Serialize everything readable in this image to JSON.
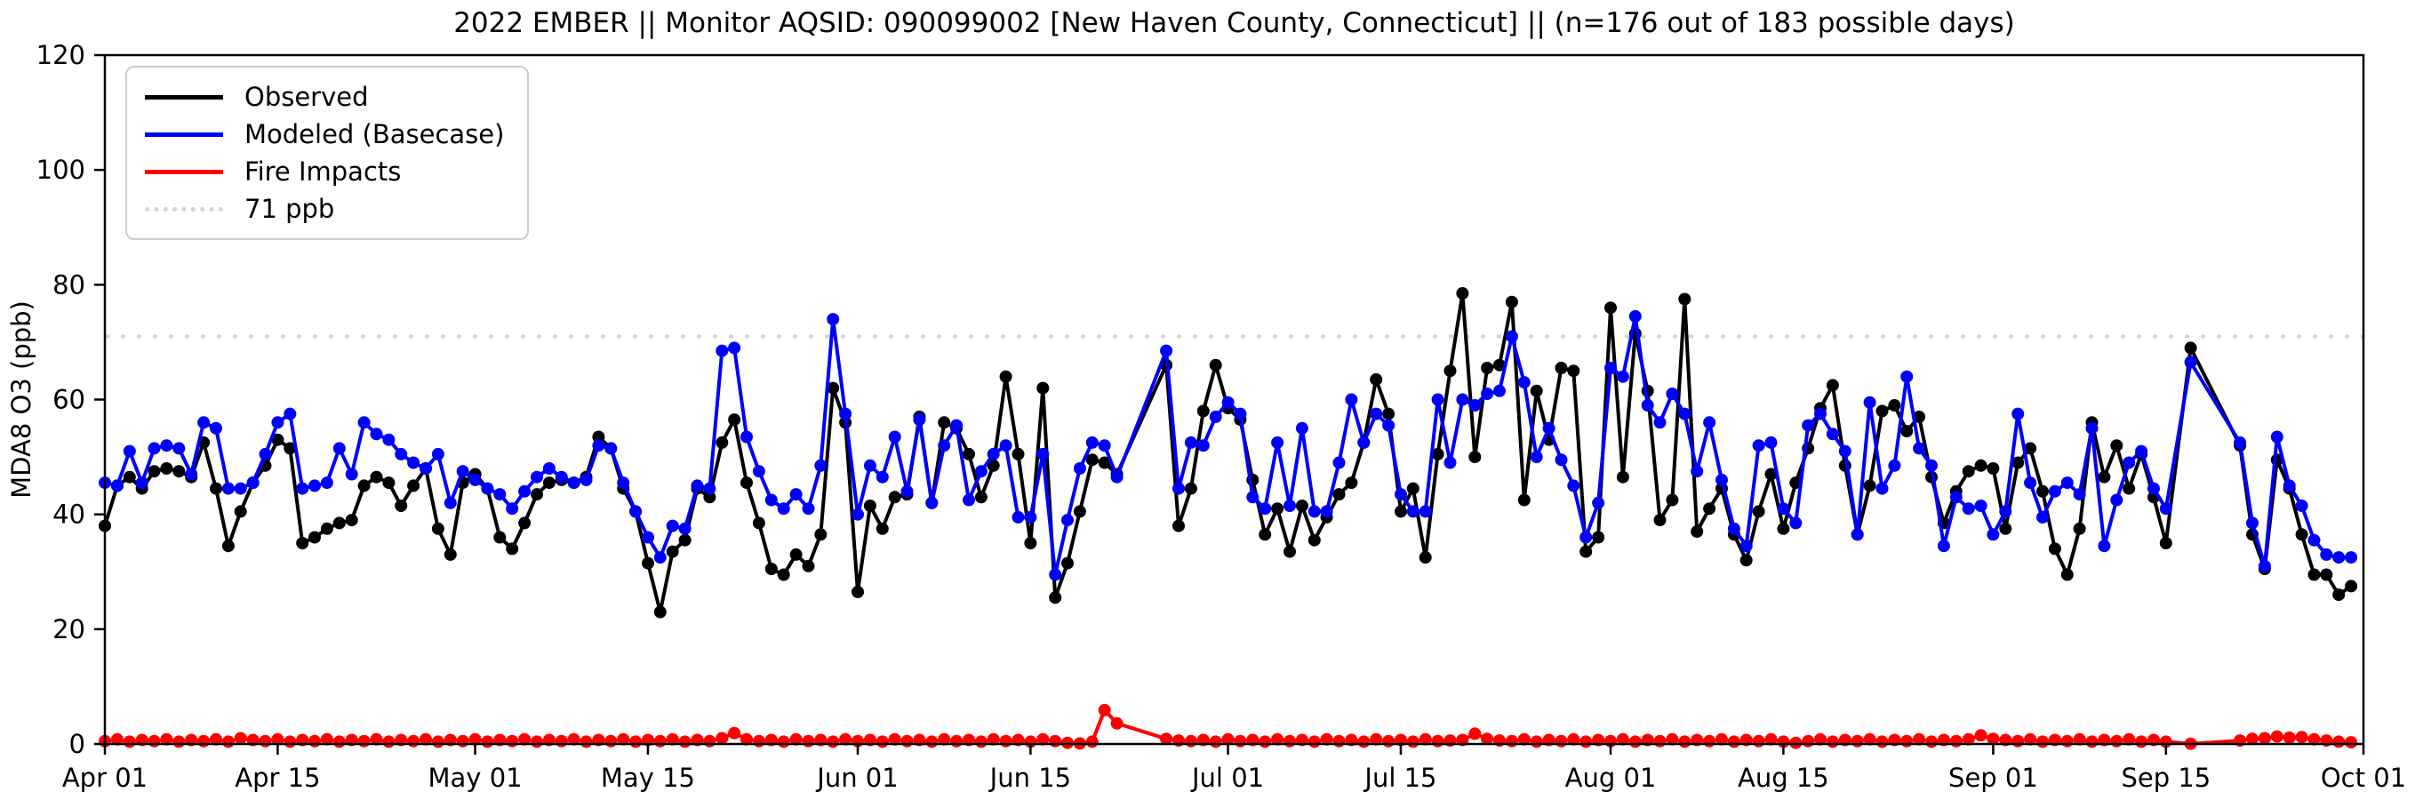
{
  "title": "2022 EMBER || Monitor AQSID: 090099002 [New Haven County, Connecticut] || (n=176 out of 183 possible days)",
  "legend": {
    "items": [
      {
        "label": "Observed",
        "color": "#000000",
        "dash": "solid"
      },
      {
        "label": "Modeled (Basecase)",
        "color": "#0000ff",
        "dash": "solid"
      },
      {
        "label": "Fire Impacts",
        "color": "#ff0000",
        "dash": "solid"
      },
      {
        "label": "71 ppb",
        "color": "#d3d3d3",
        "dash": "dotted"
      }
    ]
  },
  "axes": {
    "ylabel": "MDA8 O3 (ppb)",
    "ylim": [
      0,
      120
    ],
    "yticks": [
      0,
      20,
      40,
      60,
      80,
      100,
      120
    ],
    "xticks": [
      {
        "label": "Apr 01",
        "day": 0
      },
      {
        "label": "Apr 15",
        "day": 14
      },
      {
        "label": "May 01",
        "day": 30
      },
      {
        "label": "May 15",
        "day": 44
      },
      {
        "label": "Jun 01",
        "day": 61
      },
      {
        "label": "Jun 15",
        "day": 75
      },
      {
        "label": "Jul 01",
        "day": 91
      },
      {
        "label": "Jul 15",
        "day": 105
      },
      {
        "label": "Aug 01",
        "day": 122
      },
      {
        "label": "Aug 15",
        "day": 136
      },
      {
        "label": "Sep 01",
        "day": 153
      },
      {
        "label": "Sep 15",
        "day": 167
      },
      {
        "label": "Oct 01",
        "day": 183
      }
    ]
  },
  "chart_data": {
    "type": "line",
    "title": "2022 EMBER || Monitor AQSID: 090099002 [New Haven County, Connecticut] || (n=176 out of 183 possible days)",
    "xlabel": "",
    "ylabel": "MDA8 O3 (ppb)",
    "ylim": [
      0,
      120
    ],
    "x_unit": "daily, Apr 01 2022 through Sep 30 2022 (index 0 = Apr 01; null = missing day)",
    "n_days": 183,
    "n_valid_days": 176,
    "threshold": {
      "value": 71,
      "label": "71 ppb",
      "color": "#d3d3d3"
    },
    "grid": false,
    "legend_position": "upper left",
    "series": [
      {
        "name": "Observed",
        "color": "#000000",
        "marker": "circle",
        "values": [
          38,
          45,
          46.5,
          44.5,
          47.5,
          48,
          47.5,
          46.5,
          52.5,
          44.5,
          34.5,
          40.5,
          45.5,
          48.5,
          53,
          51.5,
          35,
          36,
          37.5,
          38.5,
          39,
          45,
          46.5,
          45.5,
          41.5,
          45,
          48,
          37.5,
          33,
          45.5,
          47,
          44.5,
          36,
          34,
          38.5,
          43.5,
          45.5,
          46,
          45.5,
          46.5,
          53.5,
          51.5,
          44.5,
          40.5,
          31.5,
          23,
          33.5,
          35.5,
          44.5,
          43,
          52.5,
          56.5,
          45.5,
          38.5,
          30.5,
          29.5,
          33,
          31,
          36.5,
          62,
          56,
          26.5,
          41.5,
          37.5,
          43,
          43.5,
          57,
          42,
          56,
          55,
          50.5,
          43,
          48.5,
          64,
          50.5,
          35,
          62,
          25.5,
          31.5,
          40.5,
          49.5,
          49,
          47,
          null,
          null,
          null,
          66,
          38,
          44.5,
          58,
          66,
          58.5,
          56.5,
          46,
          36.5,
          41,
          33.5,
          41.5,
          35.5,
          39.5,
          43.5,
          45.5,
          52.5,
          63.5,
          57.5,
          40.5,
          44.5,
          32.5,
          50.5,
          65,
          78.5,
          50,
          65.5,
          66,
          77,
          42.5,
          61.5,
          53,
          65.5,
          65,
          33.5,
          36,
          76,
          46.5,
          71.5,
          61.5,
          39,
          42.5,
          77.5,
          37,
          41,
          44.5,
          36.5,
          32,
          40.5,
          47,
          37.5,
          45.5,
          51.5,
          58.5,
          62.5,
          48.5,
          36.5,
          45,
          58,
          59,
          54.5,
          57,
          46.5,
          38.5,
          44,
          47.5,
          48.5,
          48,
          37.5,
          49,
          51.5,
          44,
          34,
          29.5,
          37.5,
          56,
          46.5,
          52,
          44.5,
          50.5,
          43,
          35,
          null,
          69,
          null,
          null,
          null,
          52,
          36.5,
          30.5,
          49.5,
          44.5,
          36.5,
          29.5,
          29.5,
          26,
          27.5
        ]
      },
      {
        "name": "Modeled (Basecase)",
        "color": "#0000ff",
        "marker": "circle",
        "values": [
          45.5,
          45,
          51,
          45.5,
          51.5,
          52,
          51.5,
          47,
          56,
          55,
          44.5,
          44.5,
          45.5,
          50.5,
          56,
          57.5,
          44.5,
          45,
          45.5,
          51.5,
          47,
          56,
          54,
          53,
          50.5,
          49,
          48,
          50.5,
          42,
          47.5,
          46,
          44.5,
          43.5,
          41,
          44,
          46.5,
          48,
          46.5,
          45.5,
          46,
          52,
          51.5,
          45.5,
          40.5,
          36,
          32.5,
          38,
          37.5,
          45,
          44.5,
          68.5,
          69,
          53.5,
          47.5,
          42.5,
          41,
          43.5,
          41,
          48.5,
          74,
          57.5,
          40,
          48.5,
          46.5,
          53.5,
          44,
          56.5,
          42,
          52,
          55.5,
          42.5,
          47.5,
          50.5,
          52,
          39.5,
          39.5,
          50.5,
          29.5,
          39,
          48,
          52.5,
          52,
          46.5,
          null,
          null,
          null,
          68.5,
          44.5,
          52.5,
          52,
          57,
          59.5,
          57.5,
          43,
          41,
          52.5,
          41.5,
          55,
          40.5,
          40.5,
          49,
          60,
          52.5,
          57.5,
          55.5,
          43.5,
          40.5,
          40.5,
          60,
          49,
          60,
          59,
          61,
          61.5,
          71,
          63,
          50,
          55,
          49.5,
          45,
          36,
          42,
          65.5,
          64,
          74.5,
          59,
          56,
          61,
          57.5,
          47.5,
          56,
          46,
          37.5,
          34.5,
          52,
          52.5,
          41,
          38.5,
          55.5,
          57.5,
          54,
          51,
          36.5,
          59.5,
          44.5,
          48.5,
          64,
          51.5,
          48.5,
          34.5,
          43,
          41,
          41.5,
          36.5,
          40.5,
          57.5,
          45.5,
          39.5,
          44,
          45.5,
          43.5,
          55,
          34.5,
          42.5,
          49,
          51,
          44.5,
          41,
          null,
          66.5,
          null,
          null,
          null,
          52.5,
          38.5,
          31,
          53.5,
          45,
          41.5,
          35.5,
          33,
          32.5,
          32.5
        ]
      },
      {
        "name": "Fire Impacts",
        "color": "#ff0000",
        "marker": "circle",
        "values": [
          0.5,
          0.8,
          0.4,
          0.7,
          0.5,
          0.8,
          0.4,
          0.7,
          0.5,
          0.8,
          0.4,
          1.0,
          0.7,
          0.5,
          0.8,
          0.4,
          0.7,
          0.5,
          0.8,
          0.4,
          0.7,
          0.5,
          0.8,
          0.4,
          0.7,
          0.5,
          0.8,
          0.4,
          0.7,
          0.5,
          0.8,
          0.4,
          0.7,
          0.5,
          0.8,
          0.4,
          0.7,
          0.5,
          0.8,
          0.4,
          0.7,
          0.5,
          0.8,
          0.4,
          0.7,
          0.5,
          0.8,
          0.4,
          0.7,
          0.5,
          1.0,
          1.9,
          0.8,
          0.5,
          0.7,
          0.4,
          0.8,
          0.5,
          0.7,
          0.4,
          0.8,
          0.5,
          0.7,
          0.4,
          0.8,
          0.5,
          0.7,
          0.4,
          0.8,
          0.5,
          0.7,
          0.4,
          0.8,
          0.5,
          0.7,
          0.4,
          0.8,
          0.5,
          0.2,
          0.1,
          0.4,
          5.9,
          3.6,
          null,
          null,
          null,
          0.9,
          0.6,
          0.5,
          0.7,
          0.4,
          0.8,
          0.5,
          0.7,
          0.4,
          0.8,
          0.5,
          0.7,
          0.4,
          0.8,
          0.5,
          0.7,
          0.4,
          0.8,
          0.5,
          0.7,
          0.4,
          0.8,
          0.5,
          0.6,
          0.7,
          1.8,
          0.9,
          0.6,
          0.5,
          0.8,
          0.4,
          0.7,
          0.5,
          0.8,
          0.4,
          0.7,
          0.5,
          0.8,
          0.4,
          0.7,
          0.5,
          0.8,
          0.4,
          0.7,
          0.5,
          0.8,
          0.4,
          0.7,
          0.5,
          0.8,
          0.4,
          0.2,
          0.5,
          0.8,
          0.4,
          0.7,
          0.5,
          0.8,
          0.4,
          0.7,
          0.5,
          0.8,
          0.4,
          0.7,
          0.5,
          0.8,
          1.5,
          0.9,
          0.7,
          0.5,
          0.8,
          0.4,
          0.7,
          0.5,
          0.8,
          0.4,
          0.7,
          0.5,
          0.8,
          0.4,
          0.7,
          0.4,
          null,
          0.05,
          null,
          null,
          null,
          0.6,
          0.9,
          1.0,
          1.3,
          1.1,
          1.2,
          0.8,
          0.6,
          0.4,
          0.3
        ]
      }
    ]
  }
}
